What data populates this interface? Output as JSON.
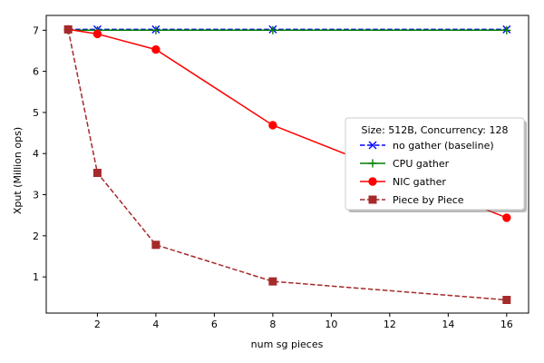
{
  "chart_data": {
    "type": "line",
    "title": "",
    "xlabel": "num sg pieces",
    "ylabel": "Xput (Million ops)",
    "xlim": [
      0.25,
      16.75
    ],
    "ylim": [
      0.12,
      7.36
    ],
    "xticks": [
      2,
      4,
      6,
      8,
      10,
      12,
      14,
      16
    ],
    "yticks": [
      1,
      2,
      3,
      4,
      5,
      6,
      7
    ],
    "grid": false,
    "x": [
      1,
      2,
      4,
      8,
      16
    ],
    "legend": {
      "title": "Size: 512B, Concurrency: 128",
      "placement": "center-right"
    },
    "series": [
      {
        "name": "no gather (baseline)",
        "values": [
          7.02,
          7.02,
          7.02,
          7.02,
          7.02
        ],
        "color": "#0000ff",
        "linestyle": "dashed",
        "marker": "x"
      },
      {
        "name": "CPU gather",
        "values": [
          7.0,
          7.0,
          7.0,
          7.0,
          7.0
        ],
        "color": "#008000",
        "linestyle": "solid",
        "marker": "plus"
      },
      {
        "name": "NIC gather",
        "values": [
          7.02,
          6.91,
          6.53,
          4.69,
          2.44
        ],
        "color": "#ff0000",
        "linestyle": "solid",
        "marker": "circle"
      },
      {
        "name": "Piece by Piece",
        "values": [
          7.02,
          3.53,
          1.78,
          0.89,
          0.44
        ],
        "color": "#a52a2a",
        "linestyle": "dashed",
        "marker": "square"
      }
    ]
  }
}
